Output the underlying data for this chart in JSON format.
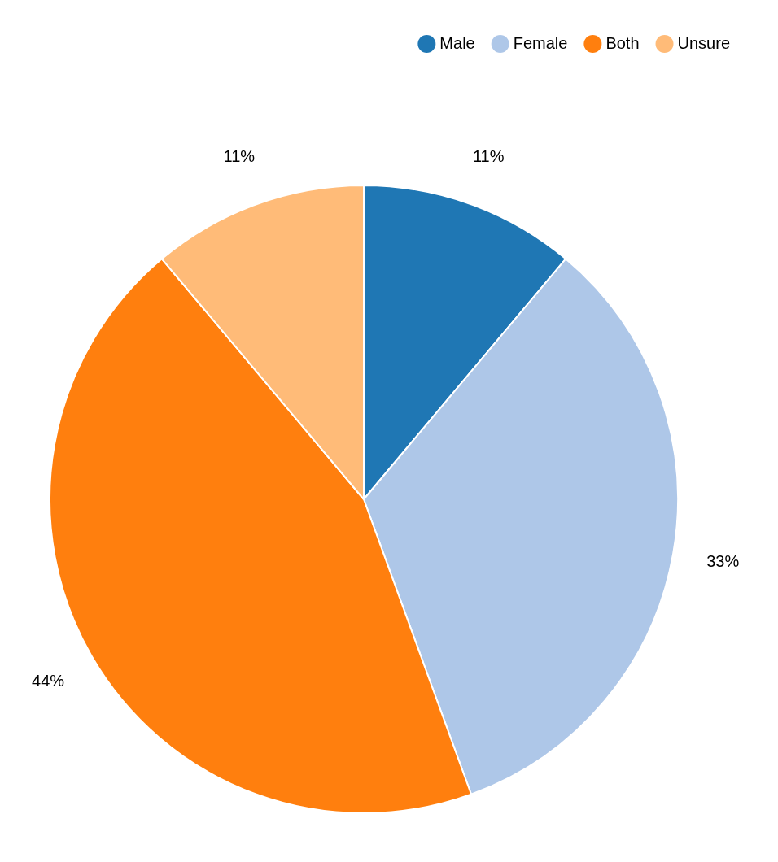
{
  "chart_data": {
    "type": "pie",
    "categories": [
      "Male",
      "Female",
      "Both",
      "Unsure"
    ],
    "values": [
      11,
      33,
      44,
      11
    ],
    "colors": [
      "#1f77b4",
      "#aec7e8",
      "#ff7f0e",
      "#ffbb78"
    ],
    "value_labels": [
      "11%",
      "33%",
      "44%",
      "11%"
    ],
    "legend": "top right"
  }
}
